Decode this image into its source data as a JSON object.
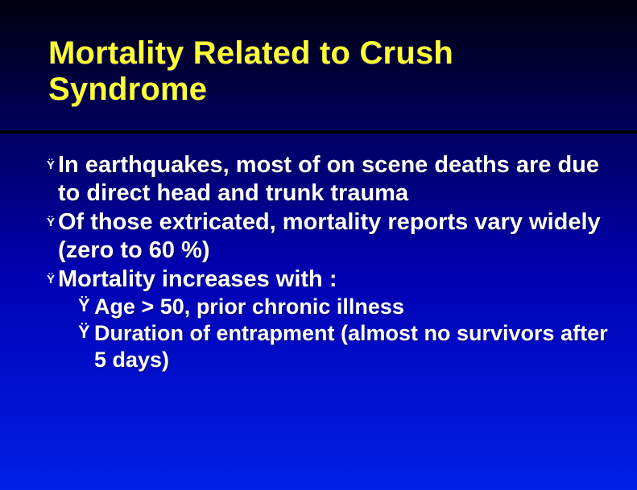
{
  "slide": {
    "title": "Mortality Related to Crush Syndrome",
    "title_color": "#ffff33",
    "text_color": "#ffffff",
    "bg_gradient_top": "#000020",
    "bg_gradient_bottom": "#0020e8",
    "title_fontsize": 40,
    "body_fontsize_lvl1": 29,
    "body_fontsize_lvl2": 27,
    "bullets": [
      {
        "level": 1,
        "glyph": "Ÿ",
        "text": "In earthquakes, most of on scene deaths are due to direct head and trunk trauma"
      },
      {
        "level": 1,
        "glyph": "Ÿ",
        "text": "Of those extricated, mortality reports vary widely (zero to 60 %)"
      },
      {
        "level": 1,
        "glyph": "Ÿ",
        "text": "Mortality increases with :"
      },
      {
        "level": 2,
        "glyph": "Ÿ",
        "text": "Age > 50, prior chronic illness"
      },
      {
        "level": 2,
        "glyph": "Ÿ",
        "text": "Duration of entrapment (almost no survivors after 5 days)"
      }
    ]
  }
}
